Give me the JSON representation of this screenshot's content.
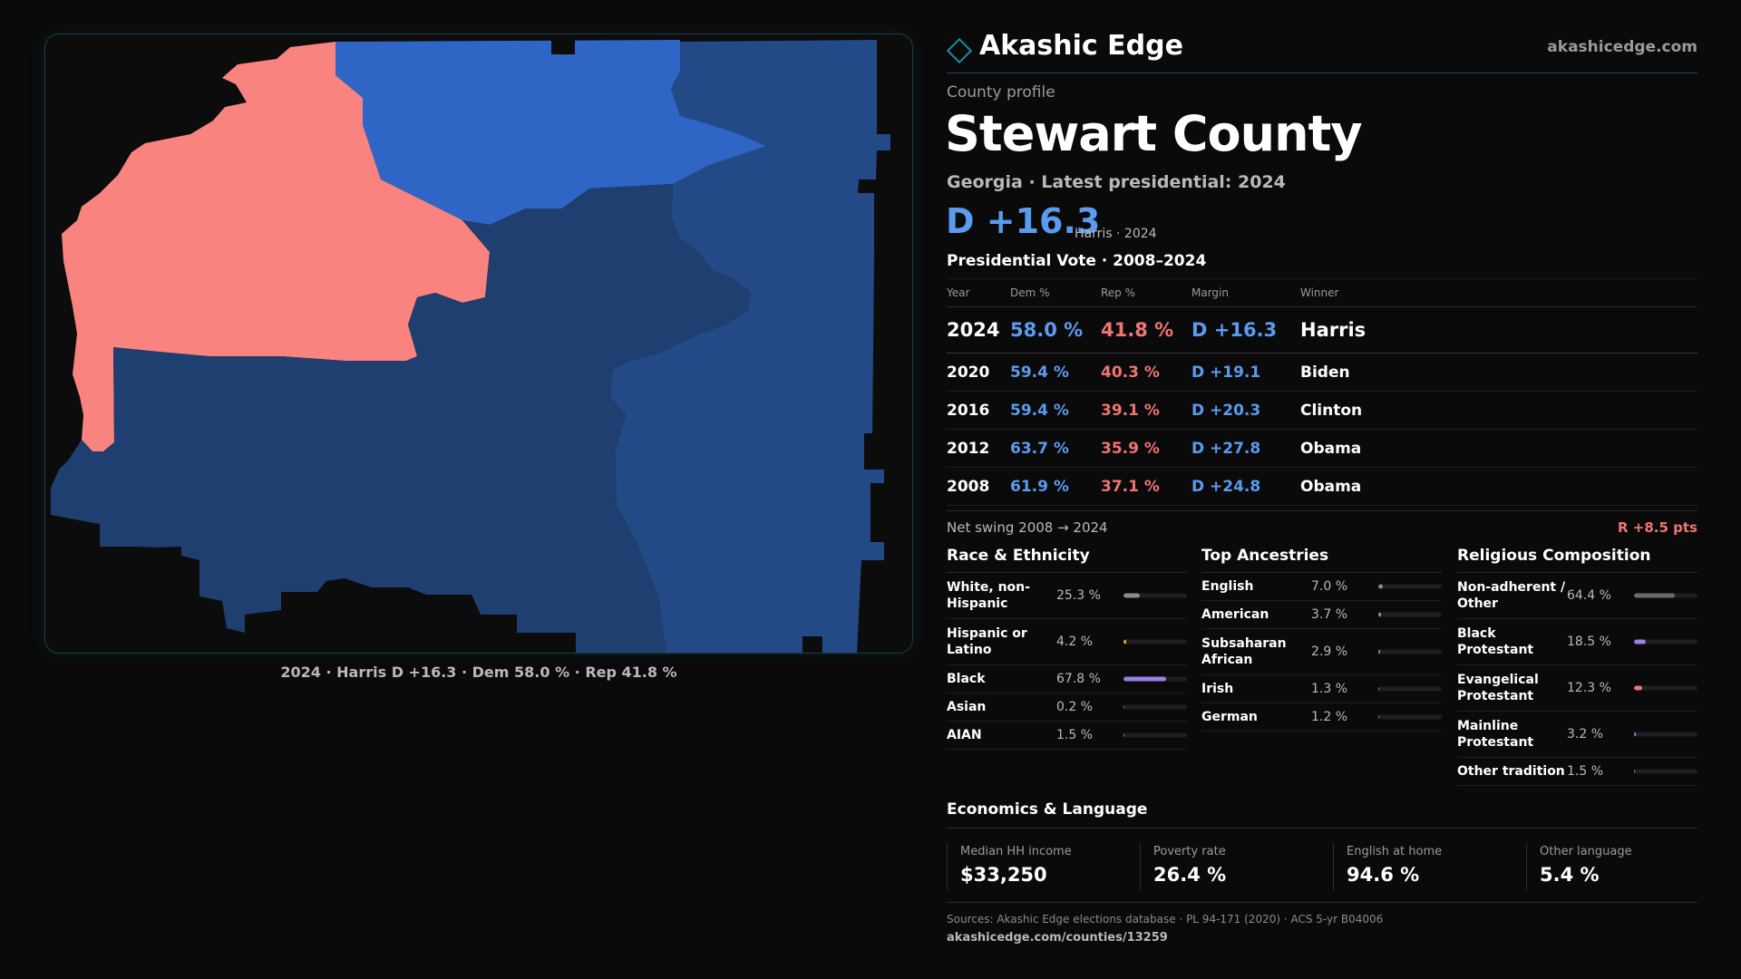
{
  "map": {
    "caption": "2024 · Harris D +16.3 · Dem 58.0 % · Rep 41.8 %",
    "colors": {
      "rep_region": "#f8837f",
      "dem_light": "#2f65c5",
      "dem_mid": "#234a86",
      "dem_dark": "#1e3f70"
    }
  },
  "header": {
    "brand": "Akashic Edge",
    "site": "akashicedge.com"
  },
  "profile": {
    "eyebrow": "County profile",
    "county": "Stewart County",
    "subtitle": "Georgia · Latest presidential: 2024",
    "margin": "D +16.3",
    "margin_note": "Harris · 2024"
  },
  "vote": {
    "title": "Presidential Vote · 2008–2024",
    "headers": {
      "year": "Year",
      "dem": "Dem %",
      "rep": "Rep %",
      "margin": "Margin",
      "winner": "Winner"
    },
    "rows": [
      {
        "year": "2024",
        "dem": "58.0 %",
        "rep": "41.8 %",
        "margin": "D +16.3",
        "winner": "Harris"
      },
      {
        "year": "2020",
        "dem": "59.4 %",
        "rep": "40.3 %",
        "margin": "D +19.1",
        "winner": "Biden"
      },
      {
        "year": "2016",
        "dem": "59.4 %",
        "rep": "39.1 %",
        "margin": "D +20.3",
        "winner": "Clinton"
      },
      {
        "year": "2012",
        "dem": "63.7 %",
        "rep": "35.9 %",
        "margin": "D +27.8",
        "winner": "Obama"
      },
      {
        "year": "2008",
        "dem": "61.9 %",
        "rep": "37.1 %",
        "margin": "D +24.8",
        "winner": "Obama"
      }
    ],
    "swing_label": "Net swing 2008 → 2024",
    "swing_value": "R +8.5 pts"
  },
  "race": {
    "title": "Race & Ethnicity",
    "items": [
      {
        "label": "White, non-Hispanic",
        "value": "25.3 %",
        "pct": 25.3,
        "color": "#8a8a92"
      },
      {
        "label": "Hispanic or Latino",
        "value": "4.2 %",
        "pct": 4.2,
        "color": "#e0a030"
      },
      {
        "label": "Black",
        "value": "67.8 %",
        "pct": 67.8,
        "color": "#9b7ee8"
      },
      {
        "label": "Asian",
        "value": "0.2 %",
        "pct": 0.2,
        "color": "#3aa0a0"
      },
      {
        "label": "AIAN",
        "value": "1.5 %",
        "pct": 1.5,
        "color": "#e06a40"
      }
    ]
  },
  "ancestry": {
    "title": "Top Ancestries",
    "items": [
      {
        "label": "English",
        "value": "7.0 %",
        "pct": 7.0,
        "color": "#8a8a92"
      },
      {
        "label": "American",
        "value": "3.7 %",
        "pct": 3.7,
        "color": "#8a8a92"
      },
      {
        "label": "Subsaharan African",
        "value": "2.9 %",
        "pct": 2.9,
        "color": "#8a8a92"
      },
      {
        "label": "Irish",
        "value": "1.3 %",
        "pct": 1.3,
        "color": "#8a8a92"
      },
      {
        "label": "German",
        "value": "1.2 %",
        "pct": 1.2,
        "color": "#8a8a92"
      }
    ]
  },
  "religion": {
    "title": "Religious Composition",
    "items": [
      {
        "label": "Non-adherent / Other",
        "value": "64.4 %",
        "pct": 64.4,
        "color": "#6a6a72"
      },
      {
        "label": "Black Protestant",
        "value": "18.5 %",
        "pct": 18.5,
        "color": "#9b7ee8"
      },
      {
        "label": "Evangelical Protestant",
        "value": "12.3 %",
        "pct": 12.3,
        "color": "#f07470"
      },
      {
        "label": "Mainline Protestant",
        "value": "3.2 %",
        "pct": 3.2,
        "color": "#5b9bef"
      },
      {
        "label": "Other tradition",
        "value": "1.5 %",
        "pct": 1.5,
        "color": "#8a8a92"
      }
    ]
  },
  "economics": {
    "title": "Economics & Language",
    "items": [
      {
        "label": "Median HH income",
        "value": "$33,250"
      },
      {
        "label": "Poverty rate",
        "value": "26.4 %"
      },
      {
        "label": "English at home",
        "value": "94.6 %"
      },
      {
        "label": "Other language",
        "value": "5.4 %"
      }
    ]
  },
  "sources": {
    "line": "Sources: Akashic Edge elections database · PL 94-171 (2020) · ACS 5-yr B04006",
    "url": "akashicedge.com/counties/13259"
  }
}
